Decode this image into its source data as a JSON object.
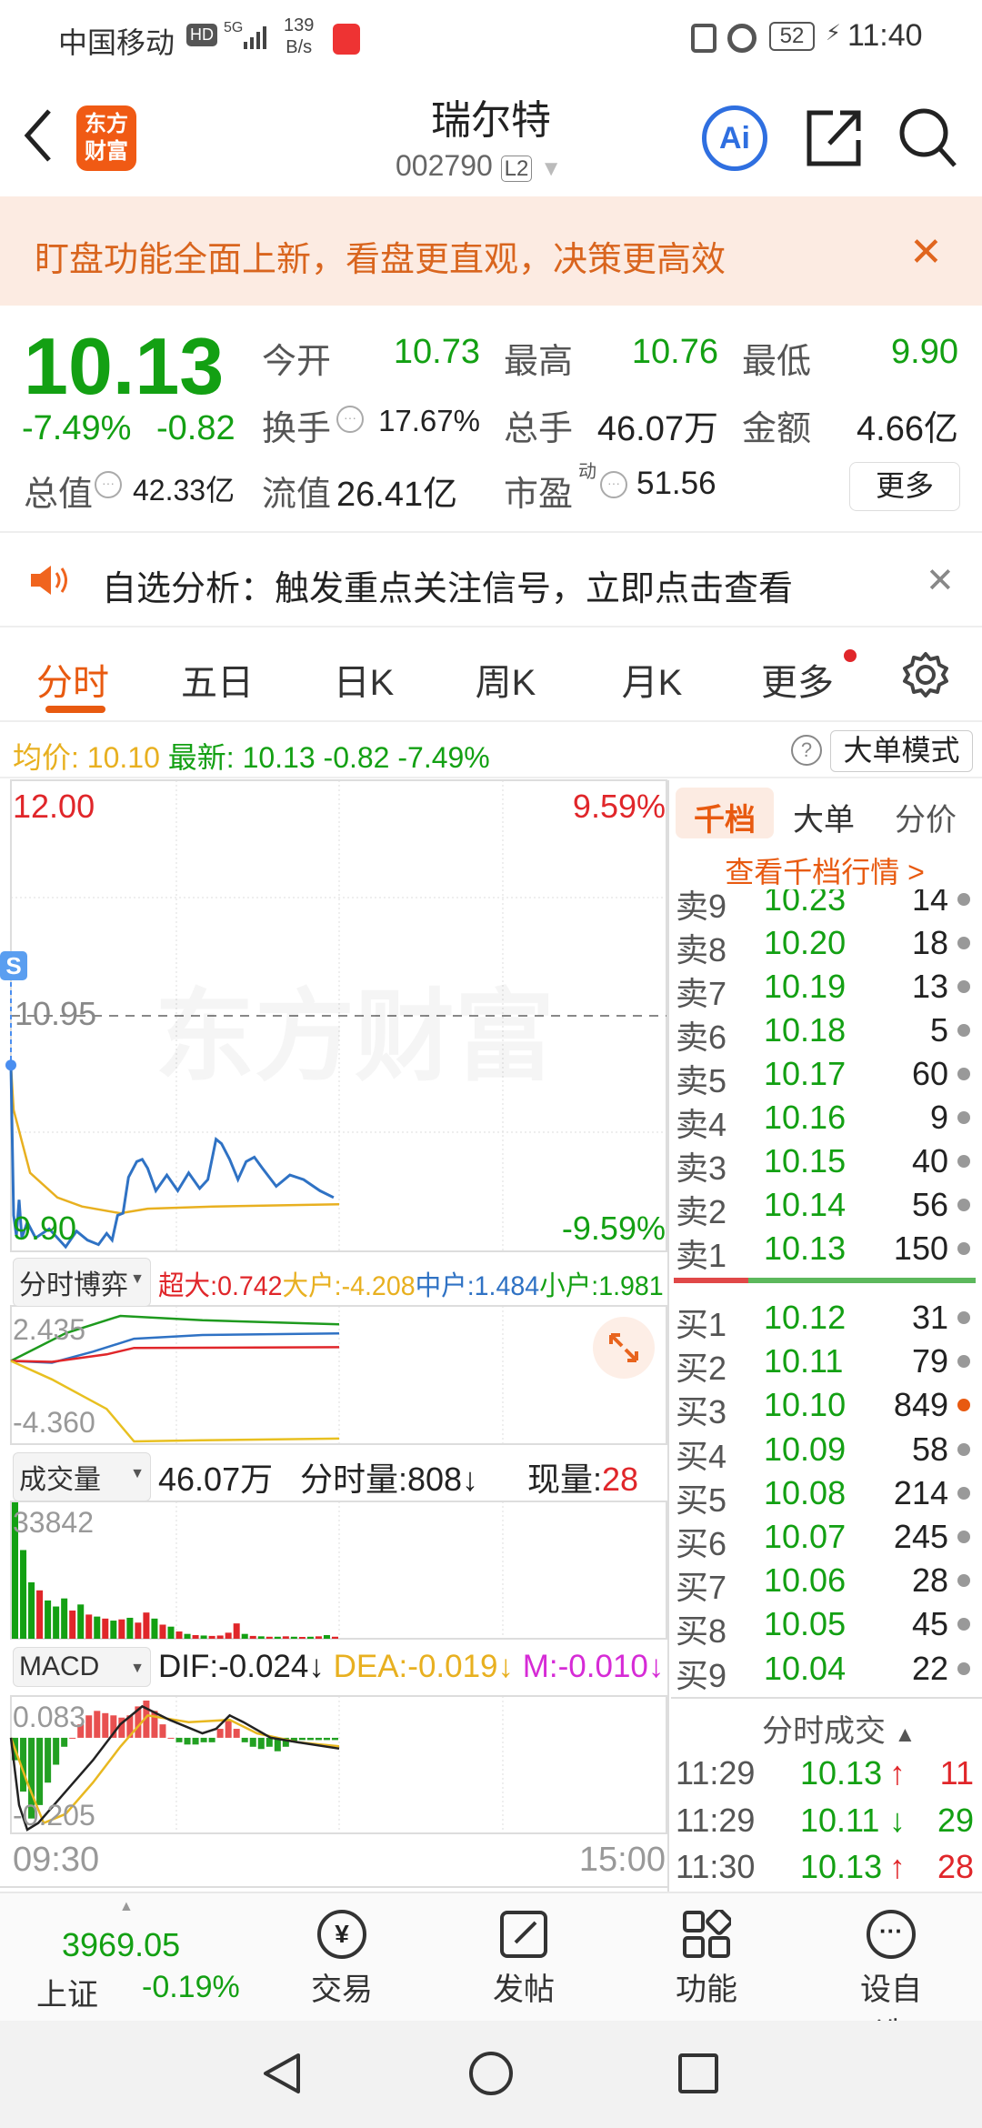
{
  "status_bar": {
    "carrier": "中国移动",
    "net_speed_value": "139",
    "net_speed_unit": "B/s",
    "battery": "52",
    "time": "11:40",
    "hd": "HD",
    "net": "5G"
  },
  "header": {
    "title": "瑞尔特",
    "code": "002790",
    "level": "L2",
    "logo_text": "东方财富"
  },
  "banner": {
    "text": "盯盘功能全面上新，看盘更直观，决策更高效"
  },
  "quote": {
    "price": "10.13",
    "change_pct": "-7.49%",
    "change": "-0.82",
    "open_label": "今开",
    "open": "10.73",
    "high_label": "最高",
    "high": "10.76",
    "low_label": "最低",
    "low": "9.90",
    "turnover_label": "换手",
    "turnover": "17.67%",
    "volume_label": "总手",
    "volume": "46.07万",
    "amount_label": "金额",
    "amount": "4.66亿",
    "mktcap_label": "总值",
    "mktcap": "42.33亿",
    "float_label": "流值",
    "float_cap": "26.41亿",
    "pe_label": "市盈",
    "pe_sup": "动",
    "pe": "51.56",
    "more_label": "更多"
  },
  "notice": {
    "text": "自选分析：触发重点关注信号，立即点击查看"
  },
  "tabs": [
    {
      "label": "分时",
      "active": true
    },
    {
      "label": "五日"
    },
    {
      "label": "日K"
    },
    {
      "label": "周K"
    },
    {
      "label": "月K"
    },
    {
      "label": "更多"
    }
  ],
  "info_row": {
    "avg_label": "均价:",
    "avg": "10.10",
    "latest_label": "最新:",
    "latest": "10.13",
    "change": "-0.82",
    "change_pct": "-7.49%",
    "mode_button": "大单模式"
  },
  "price_chart": {
    "top_price": "12.00",
    "top_pct": "9.59%",
    "pre_close": "10.95",
    "bottom_price": "9.90",
    "bottom_pct": "-9.59%",
    "watermark": "东方财富",
    "marker": "S",
    "start_time": "09:30",
    "end_time": "15:00"
  },
  "game": {
    "selector": "分时博弈",
    "super_label": "超大:",
    "super": "0.742",
    "large_label": "大户:",
    "large": "-4.208",
    "mid_label": "中户:",
    "mid": "1.484",
    "small_label": "小户:",
    "small": "1.981",
    "axis_top": "2.435",
    "axis_bottom": "-4.360"
  },
  "volume": {
    "selector": "成交量",
    "total": "46.07万",
    "minute_label": "分时量:",
    "minute": "808↓",
    "current_label": "现量:",
    "current": "28",
    "axis_top": "33842"
  },
  "macd": {
    "selector": "MACD",
    "dif": "DIF:-0.024↓",
    "dea": "DEA:-0.019↓",
    "m": "M:-0.010↓",
    "axis_top": "0.083",
    "axis_bottom": "-0.205"
  },
  "order_panel": {
    "tabs": [
      "千档",
      "大单",
      "分价"
    ],
    "link": "查看千档行情 >",
    "asks": [
      {
        "label": "卖9",
        "price": "10.23",
        "qty": "14"
      },
      {
        "label": "卖8",
        "price": "10.20",
        "qty": "18"
      },
      {
        "label": "卖7",
        "price": "10.19",
        "qty": "13"
      },
      {
        "label": "卖6",
        "price": "10.18",
        "qty": "5"
      },
      {
        "label": "卖5",
        "price": "10.17",
        "qty": "60"
      },
      {
        "label": "卖4",
        "price": "10.16",
        "qty": "9"
      },
      {
        "label": "卖3",
        "price": "10.15",
        "qty": "40"
      },
      {
        "label": "卖2",
        "price": "10.14",
        "qty": "56"
      },
      {
        "label": "卖1",
        "price": "10.13",
        "qty": "150"
      }
    ],
    "bids": [
      {
        "label": "买1",
        "price": "10.12",
        "qty": "31"
      },
      {
        "label": "买2",
        "price": "10.11",
        "qty": "79"
      },
      {
        "label": "买3",
        "price": "10.10",
        "qty": "849"
      },
      {
        "label": "买4",
        "price": "10.09",
        "qty": "58"
      },
      {
        "label": "买5",
        "price": "10.08",
        "qty": "214"
      },
      {
        "label": "买6",
        "price": "10.07",
        "qty": "245"
      },
      {
        "label": "买7",
        "price": "10.06",
        "qty": "28"
      },
      {
        "label": "买8",
        "price": "10.05",
        "qty": "45"
      },
      {
        "label": "买9",
        "price": "10.04",
        "qty": "22"
      }
    ],
    "trades_title": "分时成交",
    "trades": [
      {
        "time": "11:29",
        "price": "10.13",
        "arrow": "↑",
        "qty": "11"
      },
      {
        "time": "11:29",
        "price": "10.11",
        "arrow": "↓",
        "qty": "29"
      },
      {
        "time": "11:30",
        "price": "10.13",
        "arrow": "↑",
        "qty": "28"
      }
    ]
  },
  "bottom_nav": {
    "index_value": "3969.05",
    "index_name": "上证",
    "index_change": "-0.19%",
    "items": [
      {
        "label": "交易",
        "icon": "yen-exchange-icon"
      },
      {
        "label": "发帖",
        "icon": "edit-icon"
      },
      {
        "label": "功能",
        "icon": "grid-icon"
      },
      {
        "label": "设自选",
        "icon": "more-circle-icon"
      }
    ]
  },
  "colors": {
    "up": "#e0262a",
    "down": "#13a013",
    "accent": "#e85a10",
    "avg": "#e8b020",
    "price_line": "#2f72c4"
  },
  "chart_data": {
    "type": "line",
    "price_range": [
      9.9,
      12.0
    ],
    "session": [
      "09:30",
      "11:30"
    ],
    "price": {
      "x": [
        "09:30",
        "09:31",
        "09:32",
        "09:33",
        "09:34",
        "09:36",
        "09:39",
        "09:44",
        "09:50",
        "09:54",
        "09:58",
        "10:02",
        "10:05",
        "10:07",
        "10:09",
        "10:11",
        "10:13",
        "10:16",
        "10:18",
        "10:20",
        "10:23",
        "10:27",
        "10:31",
        "10:35",
        "10:39",
        "10:42",
        "10:45",
        "10:47",
        "10:50",
        "10:53",
        "10:56",
        "10:59",
        "11:02",
        "11:07",
        "11:12",
        "11:17",
        "11:23",
        "11:28"
      ],
      "y": [
        10.73,
        10.06,
        9.97,
        10.13,
        9.96,
        10.03,
        9.96,
        10.0,
        9.92,
        9.99,
        9.95,
        9.93,
        9.98,
        9.95,
        10.06,
        10.07,
        10.23,
        10.3,
        10.31,
        10.27,
        10.17,
        10.24,
        10.17,
        10.25,
        10.18,
        10.22,
        10.4,
        10.38,
        10.31,
        10.22,
        10.3,
        10.32,
        10.27,
        10.19,
        10.24,
        10.22,
        10.17,
        10.14
      ]
    },
    "avg": {
      "x": [
        "09:30",
        "09:31",
        "09:37",
        "09:47",
        "09:56",
        "10:10",
        "10:20",
        "10:44",
        "11:30"
      ],
      "y": [
        10.73,
        10.53,
        10.25,
        10.14,
        10.1,
        10.07,
        10.09,
        10.1,
        10.11
      ]
    },
    "game": {
      "range": [
        -4.36,
        2.435
      ],
      "small": {
        "x": [
          "09:30",
          "09:50",
          "10:10",
          "10:40",
          "11:30"
        ],
        "y": [
          0,
          1.5,
          2.435,
          2.2,
          1.981
        ]
      },
      "mid": {
        "x": [
          "09:30",
          "09:45",
          "10:00",
          "10:15",
          "10:40",
          "11:30"
        ],
        "y": [
          0,
          -0.1,
          0.5,
          1.2,
          1.4,
          1.484
        ]
      },
      "super": {
        "x": [
          "09:30",
          "09:45",
          "10:05",
          "10:15",
          "11:30"
        ],
        "y": [
          0,
          -0.05,
          0.35,
          0.7,
          0.742
        ]
      },
      "large": {
        "x": [
          "09:30",
          "09:45",
          "10:05",
          "10:15",
          "10:40",
          "11:30"
        ],
        "y": [
          0,
          -1.0,
          -2.6,
          -4.36,
          -4.3,
          -4.208
        ]
      }
    },
    "volume_bins": {
      "max": 33842,
      "values": [
        33842,
        22000,
        14000,
        12000,
        9500,
        8000,
        10000,
        7000,
        8500,
        6000,
        5500,
        5000,
        4500,
        4800,
        5200,
        4000,
        6500,
        5000,
        3500,
        3000,
        1800,
        1200,
        900,
        800,
        700,
        800,
        1500,
        3800,
        1200,
        700,
        600,
        500,
        500,
        600,
        500,
        450,
        500,
        600,
        900,
        500
      ],
      "dir": [
        "d",
        "d",
        "d",
        "u",
        "d",
        "d",
        "d",
        "u",
        "d",
        "u",
        "d",
        "u",
        "d",
        "u",
        "d",
        "u",
        "u",
        "d",
        "u",
        "d",
        "u",
        "d",
        "u",
        "d",
        "u",
        "u",
        "u",
        "u",
        "d",
        "u",
        "d",
        "u",
        "d",
        "u",
        "d",
        "u",
        "d",
        "u",
        "d",
        "u"
      ]
    },
    "macd_hist": {
      "range": [
        -0.205,
        0.083
      ],
      "values": [
        -0.05,
        -0.12,
        -0.18,
        -0.15,
        -0.1,
        -0.06,
        -0.02,
        0.0,
        0.03,
        0.05,
        0.06,
        0.055,
        0.05,
        0.045,
        0.05,
        0.07,
        0.083,
        0.06,
        0.03,
        0.0,
        -0.01,
        -0.015,
        -0.015,
        -0.01,
        -0.01,
        0.02,
        0.04,
        0.02,
        -0.01,
        -0.02,
        -0.025,
        -0.02,
        -0.03,
        -0.02,
        -0.01,
        -0.005,
        -0.005,
        -0.005,
        -0.005,
        -0.005
      ]
    },
    "dif": {
      "x": [
        "09:30",
        "09:33",
        "09:36",
        "09:40",
        "09:50",
        "10:00",
        "10:10",
        "10:18",
        "10:28",
        "10:40",
        "10:45",
        "10:50",
        "10:55",
        "11:05",
        "11:15",
        "11:30"
      ],
      "y": [
        0,
        -0.15,
        -0.205,
        -0.19,
        -0.12,
        -0.05,
        0.03,
        0.07,
        0.04,
        0.01,
        0.02,
        0.05,
        0.035,
        0.0,
        -0.01,
        -0.024
      ]
    },
    "dea": {
      "x": [
        "09:30",
        "09:36",
        "09:42",
        "09:50",
        "10:00",
        "10:10",
        "10:20",
        "10:35",
        "10:50",
        "11:00",
        "11:15",
        "11:30"
      ],
      "y": [
        0,
        -0.1,
        -0.19,
        -0.17,
        -0.1,
        -0.02,
        0.05,
        0.035,
        0.04,
        0.01,
        -0.01,
        -0.019
      ]
    }
  }
}
